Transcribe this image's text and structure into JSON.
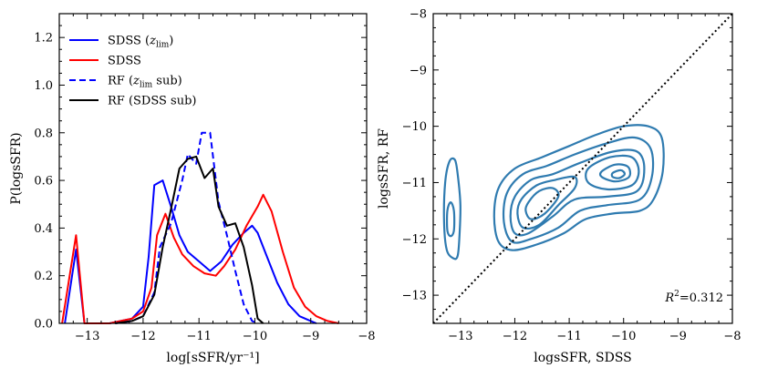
{
  "chart_data": [
    {
      "type": "line",
      "xlabel": "log[sSFR/yr⁻¹]",
      "ylabel": "P(logsSFR)",
      "xlim": [
        -13.5,
        -8
      ],
      "ylim": [
        0,
        1.3
      ],
      "xticks": [
        -13,
        -12,
        -11,
        -10,
        -9,
        -8
      ],
      "xtick_labels": [
        "−13",
        "−12",
        "−11",
        "−10",
        "−9",
        "−8"
      ],
      "yticks": [
        0.0,
        0.2,
        0.4,
        0.6,
        0.8,
        1.0,
        1.2
      ],
      "ytick_labels": [
        "0.0",
        "0.2",
        "0.4",
        "0.6",
        "0.8",
        "1.0",
        "1.2"
      ],
      "legend_position": "top-left",
      "series": [
        {
          "name": "SDSS (z_lim)",
          "legend_main": "SDSS (",
          "legend_italic": "z",
          "legend_sub": "lim",
          "legend_tail": ")",
          "color": "#0000ff",
          "dash": "solid",
          "points": [
            [
              -13.4,
              0
            ],
            [
              -13.2,
              0.31
            ],
            [
              -13.05,
              0
            ],
            [
              -12.6,
              0
            ],
            [
              -12.4,
              0.01
            ],
            [
              -12.2,
              0.02
            ],
            [
              -12.0,
              0.07
            ],
            [
              -11.9,
              0.28
            ],
            [
              -11.8,
              0.58
            ],
            [
              -11.65,
              0.6
            ],
            [
              -11.5,
              0.49
            ],
            [
              -11.35,
              0.37
            ],
            [
              -11.2,
              0.3
            ],
            [
              -11.0,
              0.26
            ],
            [
              -10.8,
              0.22
            ],
            [
              -10.6,
              0.26
            ],
            [
              -10.4,
              0.33
            ],
            [
              -10.2,
              0.38
            ],
            [
              -10.05,
              0.41
            ],
            [
              -9.95,
              0.38
            ],
            [
              -9.8,
              0.29
            ],
            [
              -9.6,
              0.17
            ],
            [
              -9.4,
              0.08
            ],
            [
              -9.2,
              0.03
            ],
            [
              -9.0,
              0.01
            ],
            [
              -8.9,
              0
            ]
          ]
        },
        {
          "name": "SDSS",
          "legend_main": "SDSS",
          "color": "#ff0000",
          "dash": "solid",
          "points": [
            [
              -13.45,
              0
            ],
            [
              -13.2,
              0.37
            ],
            [
              -13.05,
              0
            ],
            [
              -12.6,
              0
            ],
            [
              -12.4,
              0.01
            ],
            [
              -12.2,
              0.02
            ],
            [
              -12.0,
              0.05
            ],
            [
              -11.85,
              0.15
            ],
            [
              -11.75,
              0.37
            ],
            [
              -11.6,
              0.46
            ],
            [
              -11.45,
              0.36
            ],
            [
              -11.3,
              0.29
            ],
            [
              -11.1,
              0.24
            ],
            [
              -10.9,
              0.21
            ],
            [
              -10.7,
              0.2
            ],
            [
              -10.55,
              0.24
            ],
            [
              -10.35,
              0.31
            ],
            [
              -10.15,
              0.41
            ],
            [
              -9.95,
              0.49
            ],
            [
              -9.85,
              0.54
            ],
            [
              -9.7,
              0.47
            ],
            [
              -9.5,
              0.3
            ],
            [
              -9.3,
              0.15
            ],
            [
              -9.1,
              0.07
            ],
            [
              -8.9,
              0.03
            ],
            [
              -8.7,
              0.01
            ],
            [
              -8.5,
              0
            ]
          ]
        },
        {
          "name": "RF (z_lim sub)",
          "legend_main": "RF (",
          "legend_italic": "z",
          "legend_sub": "lim",
          "legend_tail": " sub)",
          "color": "#0000ff",
          "dash": "dashed",
          "points": [
            [
              -12.5,
              0
            ],
            [
              -12.2,
              0.01
            ],
            [
              -12.0,
              0.03
            ],
            [
              -11.8,
              0.13
            ],
            [
              -11.7,
              0.32
            ],
            [
              -11.5,
              0.42
            ],
            [
              -11.3,
              0.6
            ],
            [
              -11.2,
              0.71
            ],
            [
              -11.05,
              0.67
            ],
            [
              -10.95,
              0.8
            ],
            [
              -10.8,
              0.8
            ],
            [
              -10.65,
              0.51
            ],
            [
              -10.5,
              0.37
            ],
            [
              -10.35,
              0.22
            ],
            [
              -10.2,
              0.08
            ],
            [
              -10.05,
              0.01
            ],
            [
              -9.95,
              0
            ]
          ]
        },
        {
          "name": "RF (SDSS sub)",
          "legend_main": "RF (SDSS sub)",
          "color": "#000000",
          "dash": "solid",
          "points": [
            [
              -12.5,
              0
            ],
            [
              -12.2,
              0.01
            ],
            [
              -12.0,
              0.03
            ],
            [
              -11.8,
              0.12
            ],
            [
              -11.65,
              0.32
            ],
            [
              -11.5,
              0.48
            ],
            [
              -11.35,
              0.65
            ],
            [
              -11.2,
              0.69
            ],
            [
              -11.05,
              0.7
            ],
            [
              -10.9,
              0.61
            ],
            [
              -10.75,
              0.65
            ],
            [
              -10.65,
              0.49
            ],
            [
              -10.5,
              0.41
            ],
            [
              -10.35,
              0.42
            ],
            [
              -10.2,
              0.32
            ],
            [
              -10.05,
              0.16
            ],
            [
              -9.95,
              0.02
            ],
            [
              -9.85,
              0
            ]
          ]
        }
      ]
    },
    {
      "type": "contour",
      "xlabel": "logsSFR, SDSS",
      "ylabel": "logsSFR, RF",
      "xlim": [
        -13.5,
        -8
      ],
      "ylim": [
        -13.5,
        -8
      ],
      "xticks": [
        -13,
        -12,
        -11,
        -10,
        -9,
        -8
      ],
      "xtick_labels": [
        "−13",
        "−12",
        "−11",
        "−10",
        "−9",
        "−8"
      ],
      "yticks": [
        -13,
        -12,
        -11,
        -10,
        -9,
        -8
      ],
      "ytick_labels": [
        "−13",
        "−12",
        "−11",
        "−10",
        "−9",
        "−8"
      ],
      "color": "#2f7bb0",
      "one_to_one_line": [
        [
          -13.5,
          -13.5
        ],
        [
          -8,
          -8
        ]
      ],
      "annotation": {
        "prefix": "R",
        "sup": "2",
        "suffix": "=0.312"
      },
      "contours": [
        [
          [
            -13.1,
            -10.6
          ],
          [
            -13.05,
            -10.85
          ],
          [
            -13.0,
            -11.4
          ],
          [
            -13.02,
            -12.0
          ],
          [
            -13.05,
            -12.3
          ],
          [
            -13.12,
            -12.35
          ],
          [
            -13.25,
            -12.2
          ],
          [
            -13.3,
            -11.7
          ],
          [
            -13.28,
            -11.0
          ],
          [
            -13.2,
            -10.62
          ]
        ],
        [
          [
            -13.18,
            -11.35
          ],
          [
            -13.12,
            -11.5
          ],
          [
            -13.12,
            -11.85
          ],
          [
            -13.18,
            -11.95
          ],
          [
            -13.24,
            -11.85
          ],
          [
            -13.24,
            -11.5
          ]
        ],
        [
          [
            -12.3,
            -11.1
          ],
          [
            -12.0,
            -10.75
          ],
          [
            -11.5,
            -10.55
          ],
          [
            -11.0,
            -10.35
          ],
          [
            -10.5,
            -10.15
          ],
          [
            -10.0,
            -10.0
          ],
          [
            -9.55,
            -10.0
          ],
          [
            -9.3,
            -10.2
          ],
          [
            -9.28,
            -10.8
          ],
          [
            -9.45,
            -11.3
          ],
          [
            -9.7,
            -11.5
          ],
          [
            -10.2,
            -11.55
          ],
          [
            -10.7,
            -11.65
          ],
          [
            -11.1,
            -11.9
          ],
          [
            -11.6,
            -12.1
          ],
          [
            -12.05,
            -12.2
          ],
          [
            -12.3,
            -12.05
          ],
          [
            -12.38,
            -11.6
          ]
        ],
        [
          [
            -12.15,
            -11.2
          ],
          [
            -11.85,
            -10.85
          ],
          [
            -11.4,
            -10.7
          ],
          [
            -10.9,
            -10.5
          ],
          [
            -10.3,
            -10.3
          ],
          [
            -9.8,
            -10.2
          ],
          [
            -9.5,
            -10.4
          ],
          [
            -9.48,
            -10.9
          ],
          [
            -9.7,
            -11.3
          ],
          [
            -10.3,
            -11.4
          ],
          [
            -10.8,
            -11.5
          ],
          [
            -11.2,
            -11.8
          ],
          [
            -11.7,
            -12.0
          ],
          [
            -12.05,
            -12.05
          ],
          [
            -12.2,
            -11.7
          ]
        ],
        [
          [
            -12.0,
            -11.25
          ],
          [
            -11.7,
            -10.95
          ],
          [
            -11.3,
            -10.85
          ],
          [
            -10.8,
            -10.65
          ],
          [
            -10.2,
            -10.45
          ],
          [
            -9.75,
            -10.45
          ],
          [
            -9.62,
            -10.75
          ],
          [
            -9.75,
            -11.15
          ],
          [
            -10.3,
            -11.25
          ],
          [
            -10.9,
            -11.3
          ],
          [
            -11.3,
            -11.6
          ],
          [
            -11.75,
            -11.9
          ],
          [
            -12.0,
            -11.9
          ],
          [
            -12.08,
            -11.6
          ]
        ],
        [
          [
            -11.88,
            -11.3
          ],
          [
            -11.6,
            -11.05
          ],
          [
            -11.25,
            -10.95
          ],
          [
            -10.9,
            -10.9
          ],
          [
            -10.9,
            -11.1
          ],
          [
            -11.2,
            -11.4
          ],
          [
            -11.55,
            -11.75
          ],
          [
            -11.85,
            -11.8
          ],
          [
            -11.95,
            -11.55
          ]
        ],
        [
          [
            -11.75,
            -11.35
          ],
          [
            -11.55,
            -11.15
          ],
          [
            -11.3,
            -11.1
          ],
          [
            -11.2,
            -11.25
          ],
          [
            -11.45,
            -11.55
          ],
          [
            -11.7,
            -11.65
          ],
          [
            -11.8,
            -11.5
          ]
        ],
        [
          [
            -10.65,
            -10.75
          ],
          [
            -10.25,
            -10.55
          ],
          [
            -9.85,
            -10.55
          ],
          [
            -9.72,
            -10.8
          ],
          [
            -9.85,
            -11.05
          ],
          [
            -10.3,
            -11.12
          ],
          [
            -10.65,
            -11.0
          ]
        ],
        [
          [
            -10.4,
            -10.8
          ],
          [
            -10.15,
            -10.68
          ],
          [
            -9.92,
            -10.72
          ],
          [
            -9.9,
            -10.9
          ],
          [
            -10.15,
            -10.98
          ],
          [
            -10.4,
            -10.9
          ]
        ],
        [
          [
            -10.2,
            -10.83
          ],
          [
            -10.05,
            -10.78
          ],
          [
            -9.98,
            -10.85
          ],
          [
            -10.08,
            -10.92
          ],
          [
            -10.2,
            -10.9
          ]
        ]
      ]
    }
  ]
}
